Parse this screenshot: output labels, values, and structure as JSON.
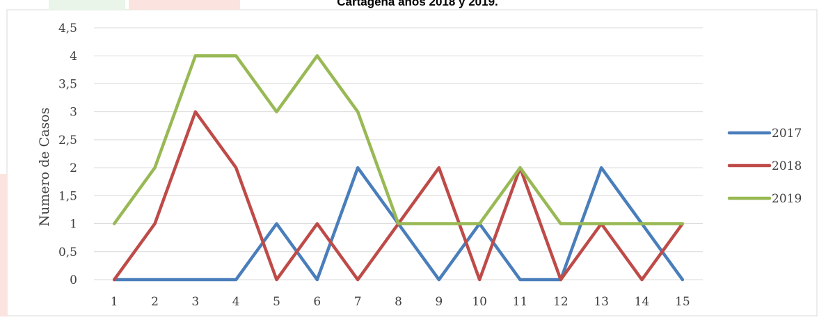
{
  "chart_data": {
    "type": "line",
    "title": "Cartagena años 2018 y 2019.",
    "xlabel": "",
    "ylabel": "Numero de Casos",
    "categories": [
      "1",
      "2",
      "3",
      "4",
      "5",
      "6",
      "7",
      "8",
      "9",
      "10",
      "11",
      "12",
      "13",
      "14",
      "15"
    ],
    "y_ticks": [
      "0",
      "0,5",
      "1",
      "1,5",
      "2",
      "2,5",
      "3",
      "3,5",
      "4",
      "4,5"
    ],
    "ylim": [
      0,
      4.5
    ],
    "grid": true,
    "legend_position": "right",
    "series": [
      {
        "name": "2017",
        "color": "#4a7ebb",
        "values": [
          0,
          0,
          0,
          0,
          1,
          0,
          2,
          1,
          0,
          1,
          0,
          0,
          2,
          1,
          0
        ]
      },
      {
        "name": "2018",
        "color": "#be4b48",
        "values": [
          0,
          1,
          3,
          2,
          0,
          1,
          0,
          1,
          2,
          0,
          2,
          0,
          1,
          0,
          1
        ]
      },
      {
        "name": "2019",
        "color": "#98b954",
        "values": [
          1,
          2,
          4,
          4,
          3,
          4,
          3,
          1,
          1,
          1,
          2,
          1,
          1,
          1,
          1
        ]
      }
    ]
  }
}
